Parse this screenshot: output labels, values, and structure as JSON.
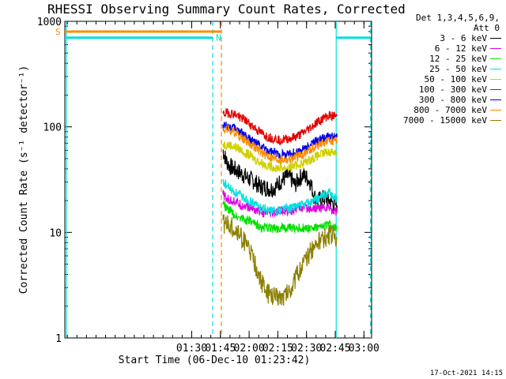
{
  "chart_data": {
    "type": "line",
    "title": "RHESSI Observing Summary Count Rates, Corrected",
    "xlabel": "Start Time (06-Dec-10 01:23:42)",
    "ylabel": "Corrected Count Rate (s⁻¹ detector⁻¹)",
    "y_scale": "log",
    "ylim": [
      1,
      1000
    ],
    "xlim_minutes": [
      23.7,
      184
    ],
    "x_ticks": [
      {
        "label": "01:30",
        "minute": 90
      },
      {
        "label": "01:45",
        "minute": 105
      },
      {
        "label": "02:00",
        "minute": 120
      },
      {
        "label": "02:15",
        "minute": 135
      },
      {
        "label": "02:30",
        "minute": 150
      },
      {
        "label": "02:45",
        "minute": 165
      },
      {
        "label": "03:00",
        "minute": 180
      }
    ],
    "y_tick_labels": [
      "1",
      "10",
      "100",
      "1000"
    ],
    "legend_header": [
      "Det 1,3,4,5,6,9,",
      "Att 0"
    ],
    "series": [
      {
        "name": "3 - 6 keV",
        "color": "#000000",
        "x": [
          106.3,
          108,
          110,
          112,
          114,
          116,
          118,
          120,
          122,
          124,
          126,
          128,
          130,
          132,
          134,
          136,
          138,
          140,
          142,
          144,
          146,
          148,
          150,
          152,
          154,
          156,
          158,
          160,
          162,
          164,
          166
        ],
        "y": [
          60,
          48,
          42,
          40,
          38,
          36,
          34,
          32,
          31,
          29,
          27,
          27,
          26,
          26,
          27,
          30,
          32,
          34,
          32,
          28,
          32,
          35,
          33,
          30,
          22,
          20,
          21,
          21,
          20,
          19,
          18
        ]
      },
      {
        "name": "6 - 12 keV",
        "color": "#e000e0",
        "x": [
          106.3,
          108,
          110,
          112,
          114,
          116,
          118,
          120,
          122,
          124,
          126,
          128,
          130,
          132,
          134,
          136,
          138,
          140,
          142,
          144,
          146,
          148,
          150,
          152,
          154,
          156,
          158,
          160,
          162,
          164,
          166
        ],
        "y": [
          23,
          21,
          20,
          20,
          19,
          18,
          18,
          17,
          17,
          16,
          16,
          15,
          15,
          15,
          15,
          16,
          16,
          16,
          16,
          17,
          17,
          17,
          17,
          17,
          17,
          17,
          17,
          17,
          17,
          16,
          16
        ]
      },
      {
        "name": "12 - 25 keV",
        "color": "#00e000",
        "x": [
          106.3,
          108,
          110,
          112,
          114,
          116,
          118,
          120,
          122,
          124,
          126,
          128,
          130,
          132,
          134,
          136,
          138,
          140,
          142,
          144,
          146,
          148,
          150,
          152,
          154,
          156,
          158,
          160,
          162,
          164,
          166
        ],
        "y": [
          19,
          17,
          16,
          15,
          14,
          14,
          13,
          13,
          12,
          12,
          11,
          11,
          11,
          11,
          11,
          11,
          11,
          11,
          11,
          11,
          11,
          11,
          11,
          11,
          11,
          11,
          11,
          12,
          12,
          11,
          11
        ]
      },
      {
        "name": "25 - 50 keV",
        "color": "#00e0e0",
        "x": [
          106.3,
          108,
          110,
          112,
          114,
          116,
          118,
          120,
          122,
          124,
          126,
          128,
          130,
          132,
          134,
          136,
          138,
          140,
          142,
          144,
          146,
          148,
          150,
          152,
          154,
          156,
          158,
          160,
          162,
          164,
          166
        ],
        "y": [
          30,
          28,
          26,
          24,
          23,
          22,
          21,
          20,
          19,
          18,
          17,
          17,
          16,
          16,
          16,
          16,
          17,
          17,
          17,
          18,
          18,
          18,
          19,
          19,
          20,
          21,
          22,
          23,
          24,
          22,
          20
        ]
      },
      {
        "name": "50 - 100 keV",
        "color": "#d0d000",
        "x": [
          106.3,
          108,
          110,
          112,
          114,
          116,
          118,
          120,
          122,
          124,
          126,
          128,
          130,
          132,
          134,
          136,
          138,
          140,
          142,
          144,
          146,
          148,
          150,
          152,
          154,
          156,
          158,
          160,
          162,
          164,
          166
        ],
        "y": [
          68,
          68,
          67,
          65,
          63,
          60,
          57,
          54,
          51,
          48,
          46,
          44,
          43,
          42,
          41,
          41,
          41,
          41,
          42,
          43,
          44,
          45,
          47,
          49,
          51,
          53,
          55,
          57,
          58,
          58,
          57
        ]
      },
      {
        "name": "100 - 300 keV",
        "color": "#e00000",
        "x": [
          106.3,
          108,
          110,
          112,
          114,
          116,
          118,
          120,
          122,
          124,
          126,
          128,
          130,
          132,
          134,
          136,
          138,
          140,
          142,
          144,
          146,
          148,
          150,
          152,
          154,
          156,
          158,
          160,
          162,
          164,
          166
        ],
        "y": [
          130,
          135,
          135,
          132,
          128,
          122,
          115,
          108,
          101,
          94,
          88,
          84,
          80,
          78,
          77,
          76,
          76,
          77,
          78,
          80,
          83,
          87,
          92,
          98,
          105,
          112,
          118,
          124,
          128,
          128,
          126
        ]
      },
      {
        "name": "300 - 800 keV",
        "color": "#0000e0",
        "x": [
          106.3,
          108,
          110,
          112,
          114,
          116,
          118,
          120,
          122,
          124,
          126,
          128,
          130,
          132,
          134,
          136,
          138,
          140,
          142,
          144,
          146,
          148,
          150,
          152,
          154,
          156,
          158,
          160,
          162,
          164,
          166
        ],
        "y": [
          102,
          102,
          100,
          97,
          93,
          88,
          83,
          78,
          73,
          69,
          65,
          62,
          59,
          57,
          56,
          55,
          55,
          55,
          56,
          57,
          59,
          61,
          64,
          67,
          71,
          74,
          77,
          79,
          80,
          80,
          80
        ]
      },
      {
        "name": "800 - 7000 keV",
        "color": "#ff8c00",
        "x": [
          106.3,
          108,
          110,
          112,
          114,
          116,
          118,
          120,
          122,
          124,
          126,
          128,
          130,
          132,
          134,
          136,
          138,
          140,
          142,
          144,
          146,
          148,
          150,
          152,
          154,
          156,
          158,
          160,
          162,
          164,
          166
        ],
        "y": [
          94,
          94,
          92,
          89,
          85,
          80,
          75,
          70,
          66,
          62,
          58,
          55,
          53,
          51,
          50,
          49,
          49,
          49,
          50,
          51,
          53,
          55,
          58,
          61,
          64,
          67,
          70,
          72,
          74,
          74,
          74
        ]
      },
      {
        "name": "7000 - 15000 keV",
        "color": "#8b8000",
        "x": [
          106.3,
          108,
          110,
          112,
          114,
          116,
          118,
          120,
          122,
          124,
          126,
          128,
          130,
          132,
          134,
          136,
          138,
          140,
          142,
          144,
          146,
          148,
          150,
          152,
          154,
          156,
          158,
          160,
          162,
          164,
          166
        ],
        "y": [
          12,
          12,
          11.5,
          11,
          10,
          9,
          8,
          7,
          5.5,
          4.5,
          3.5,
          3,
          2.6,
          2.5,
          2.5,
          2.5,
          2.5,
          2.7,
          3,
          3.6,
          4.2,
          5,
          5.5,
          6.5,
          7.5,
          8,
          8.5,
          9,
          9.5,
          9.5,
          9
        ]
      }
    ],
    "annotations": [
      {
        "text": "S",
        "color": "#ff8c00",
        "kind": "saa-bar",
        "x_start": 23.7,
        "x_end": 105.5,
        "y": 800
      },
      {
        "text": "N",
        "color": "#00e0e0",
        "kind": "night-bar",
        "x_start": 23.7,
        "x_end": 101,
        "y": 700
      },
      {
        "text": "",
        "color": "#00e0e0",
        "kind": "night-bar",
        "x_start": 165.5,
        "x_end": 183.5,
        "y": 700
      }
    ],
    "vertical_markers": [
      {
        "minute": 24.5,
        "color": "#00e0e0",
        "style": "solid"
      },
      {
        "minute": 101,
        "color": "#00e0e0",
        "style": "dashed"
      },
      {
        "minute": 105.5,
        "color": "#ff8c00",
        "style": "dashed"
      },
      {
        "minute": 165.5,
        "color": "#00e0e0",
        "style": "solid"
      },
      {
        "minute": 183.5,
        "color": "#00e0e0",
        "style": "dashed"
      }
    ]
  },
  "footer": {
    "date": "17-Oct-2021 14:15"
  }
}
